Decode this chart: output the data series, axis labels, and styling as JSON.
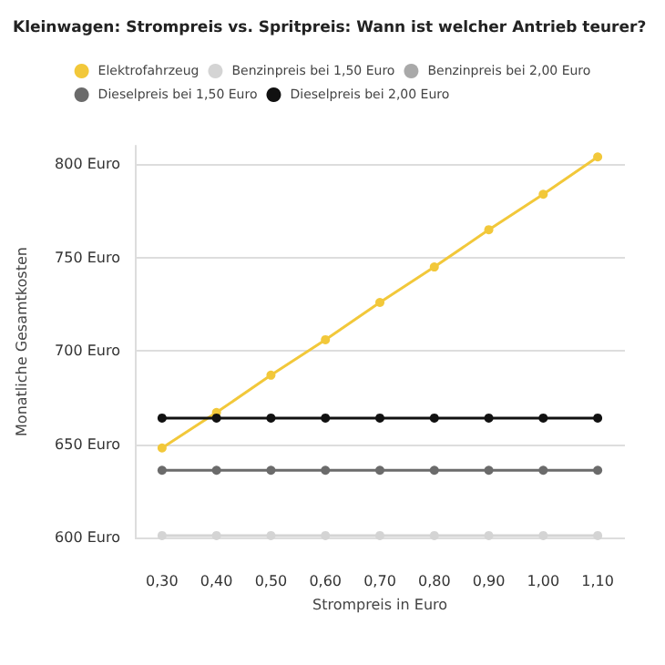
{
  "chart_data": {
    "type": "line",
    "title": "Kleinwagen: Strompreis vs. Spritpreis: Wann ist welcher Antrieb teurer?",
    "xlabel": "Strompreis in Euro",
    "ylabel": "Monatliche Gesamtkosten",
    "categories": [
      "0,30",
      "0,40",
      "0,50",
      "0,60",
      "0,70",
      "0,80",
      "0,90",
      "1,00",
      "1,10"
    ],
    "series": [
      {
        "name": "Elektrofahrzeug",
        "color": "#f2c83a",
        "values": [
          648,
          667,
          687,
          706,
          726,
          745,
          765,
          784,
          804
        ]
      },
      {
        "name": "Benzinpreis bei 1,50 Euro",
        "color": "#d4d4d4",
        "values": [
          601,
          601,
          601,
          601,
          601,
          601,
          601,
          601,
          601
        ]
      },
      {
        "name": "Benzinpreis bei 2,00 Euro",
        "color": "#a9a9a9",
        "values": [
          null,
          null,
          null,
          null,
          null,
          null,
          null,
          null,
          null
        ]
      },
      {
        "name": "Dieselpreis bei 1,50 Euro",
        "color": "#6b6b6b",
        "values": [
          636,
          636,
          636,
          636,
          636,
          636,
          636,
          636,
          636
        ]
      },
      {
        "name": "Dieselpreis bei 2,00 Euro",
        "color": "#111111",
        "values": [
          664,
          664,
          664,
          664,
          664,
          664,
          664,
          664,
          664
        ]
      }
    ],
    "ylim": [
      600,
      810
    ],
    "yticks": [
      {
        "value": 600,
        "label": "600 Euro"
      },
      {
        "value": 650,
        "label": "650 Euro"
      },
      {
        "value": 700,
        "label": "700 Euro"
      },
      {
        "value": 750,
        "label": "750 Euro"
      },
      {
        "value": 800,
        "label": "800 Euro"
      }
    ],
    "grid": "y",
    "legend": "top",
    "marker": "circle",
    "line_style": "solid"
  }
}
